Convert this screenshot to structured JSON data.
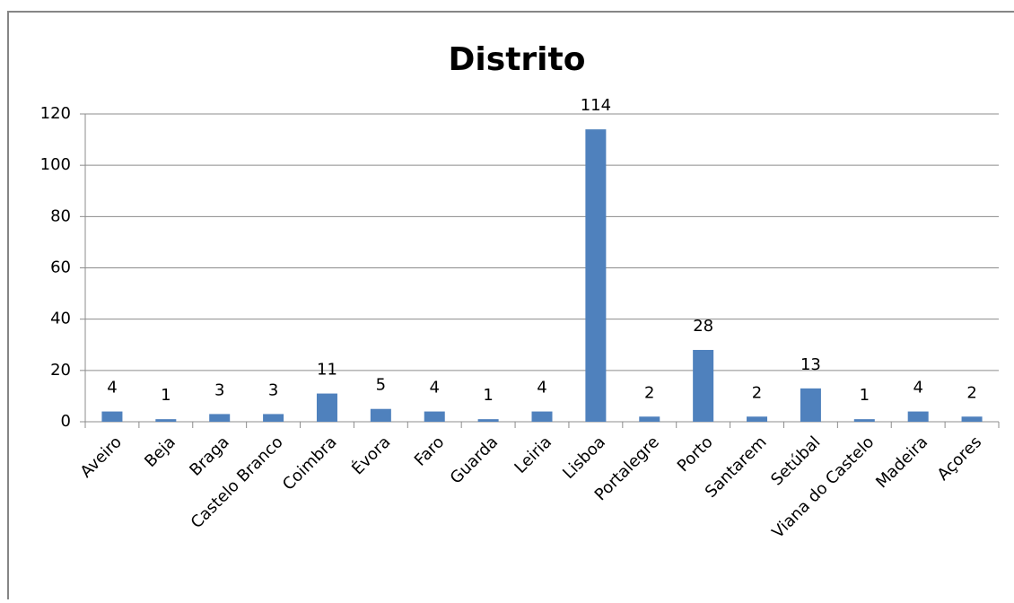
{
  "chart_data": {
    "type": "bar",
    "title": "Distrito",
    "categories": [
      "Aveiro",
      "Beja",
      "Braga",
      "Castelo Branco",
      "Coimbra",
      "Évora",
      "Faro",
      "Guarda",
      "Leiria",
      "Lisboa",
      "Portalegre",
      "Porto",
      "Santarem",
      "Setúbal",
      "Viana do Castelo",
      "Madeira",
      "Açores"
    ],
    "values": [
      4,
      1,
      3,
      3,
      11,
      5,
      4,
      1,
      4,
      114,
      2,
      28,
      2,
      13,
      1,
      4,
      2
    ],
    "color": "#4f81bd",
    "ylim": [
      0,
      120
    ],
    "yticks": [
      0,
      20,
      40,
      60,
      80,
      100,
      120
    ],
    "grid": true
  }
}
